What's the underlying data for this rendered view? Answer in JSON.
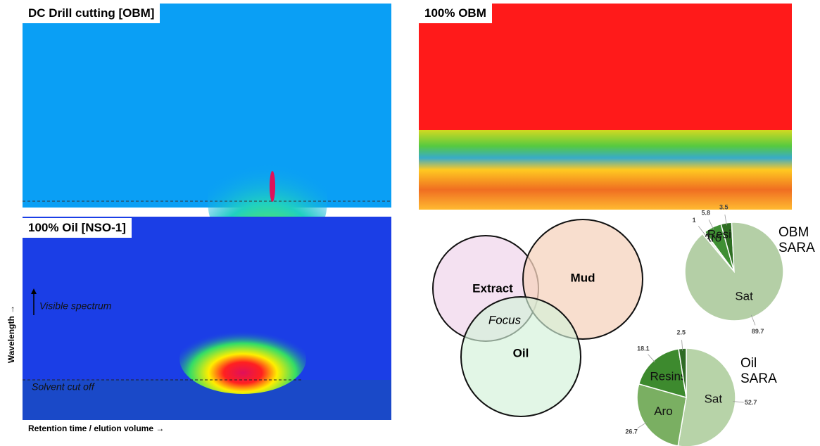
{
  "panels": [
    {
      "title": "DC Drill cutting [OBM]"
    },
    {
      "title": "100% OBM"
    },
    {
      "title": "100% Oil [NSO-1]"
    }
  ],
  "annotations": {
    "y_axis": "Wavelength →",
    "x_axis": "Retention time / elution volume →",
    "visible": "Visible spectrum",
    "solvent": "Solvent cut off"
  },
  "venn": {
    "sets": [
      "Extract",
      "Mud",
      "Oil"
    ],
    "center": "Focus"
  },
  "chart_data": [
    {
      "type": "pie",
      "title": "OBM SARA",
      "categories": [
        null,
        "Aro",
        "Resin",
        "Sat"
      ],
      "values": [
        1,
        5.8,
        3.5,
        89.7
      ],
      "colors": [
        "#e8f0e2",
        "#3f8f33",
        "#2e6e22",
        "#b4cfa6"
      ]
    },
    {
      "type": "pie",
      "title": "Oil SARA",
      "categories": [
        "Sat",
        "Aro",
        "Resins",
        null
      ],
      "values": [
        52.7,
        26.7,
        18.1,
        2.5
      ],
      "colors": [
        "#b7d3a8",
        "#7aaf62",
        "#3d8a2e",
        "#2f6b25"
      ]
    }
  ]
}
